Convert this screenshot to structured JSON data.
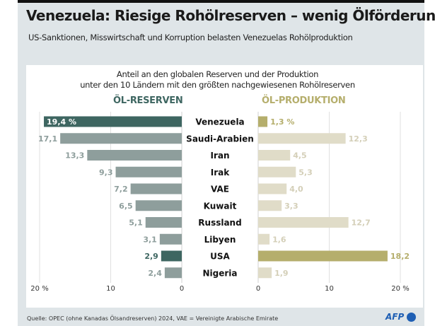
{
  "title": "Venezuela: Riesige Rohölreserven – wenig Ölförderung",
  "subtitle": "US-Sanktionen, Misswirtschaft und Korruption belasten Venezuelas Rohölproduktion",
  "source": "Quelle: OPEC (ohne Kanadas Ölsandreserven) 2024, VAE = Vereinigte Arabische Emirate",
  "logo": "AFP",
  "chart_data": {
    "type": "bar",
    "title": "Anteil an den globalen Reserven und der Produktion",
    "title2": "unter den 10 Ländern mit den größten nachgewiesenen Rohölreserven",
    "categories": [
      "Venezuela",
      "Saudi-Arabien",
      "Iran",
      "Irak",
      "VAE",
      "Kuwait",
      "Russland",
      "Libyen",
      "USA",
      "Nigeria"
    ],
    "highlight": [
      "Venezuela",
      "USA"
    ],
    "xlim": [
      0,
      20
    ],
    "grid": true,
    "series": [
      {
        "name": "ÖL-RESERVEN",
        "values": [
          19.4,
          17.1,
          13.3,
          9.3,
          7.2,
          6.5,
          5.1,
          3.1,
          2.9,
          2.4
        ],
        "labels": [
          "19,4 %",
          "17,1",
          "13,3",
          "9,3",
          "7,2",
          "6,5",
          "5,1",
          "3,1",
          "2,9",
          "2,4"
        ],
        "ticks": [
          "20 %",
          "10",
          "0"
        ],
        "color": "#8e9e9c",
        "highlight_color": "#3e6661"
      },
      {
        "name": "ÖL-PRODUKTION",
        "values": [
          1.3,
          12.3,
          4.5,
          5.3,
          4.0,
          3.3,
          12.7,
          1.6,
          18.2,
          1.9
        ],
        "labels": [
          "1,3 %",
          "12,3",
          "4,5",
          "5,3",
          "4,0",
          "3,3",
          "12,7",
          "1,6",
          "18,2",
          "1,9"
        ],
        "ticks": [
          "0",
          "10",
          "20 %"
        ],
        "color": "#e0dcc8",
        "highlight_color": "#b5ae6c"
      }
    ]
  }
}
